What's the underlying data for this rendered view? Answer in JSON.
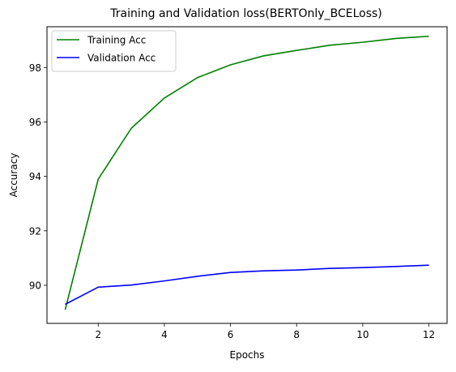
{
  "chart_data": {
    "type": "line",
    "title": "Training and Validation loss(BERTOnly_BCELoss)",
    "xlabel": "Epochs",
    "ylabel": "Accuracy",
    "x": [
      1,
      2,
      3,
      4,
      5,
      6,
      7,
      8,
      9,
      10,
      11,
      12
    ],
    "xlim": [
      0.45,
      12.55
    ],
    "ylim": [
      88.6,
      99.5
    ],
    "xticks": [
      2,
      4,
      6,
      8,
      10,
      12
    ],
    "yticks": [
      90,
      92,
      94,
      96,
      98
    ],
    "grid": false,
    "legend_position": "upper-left",
    "series": [
      {
        "name": "Training Acc",
        "color": "#008000",
        "values": [
          89.1,
          93.9,
          95.77,
          96.88,
          97.63,
          98.1,
          98.43,
          98.63,
          98.82,
          98.93,
          99.07,
          99.15
        ]
      },
      {
        "name": "Validation Acc",
        "color": "#0000ff",
        "values": [
          89.3,
          89.93,
          90.01,
          90.16,
          90.33,
          90.47,
          90.53,
          90.56,
          90.62,
          90.65,
          90.69,
          90.74
        ]
      }
    ]
  }
}
